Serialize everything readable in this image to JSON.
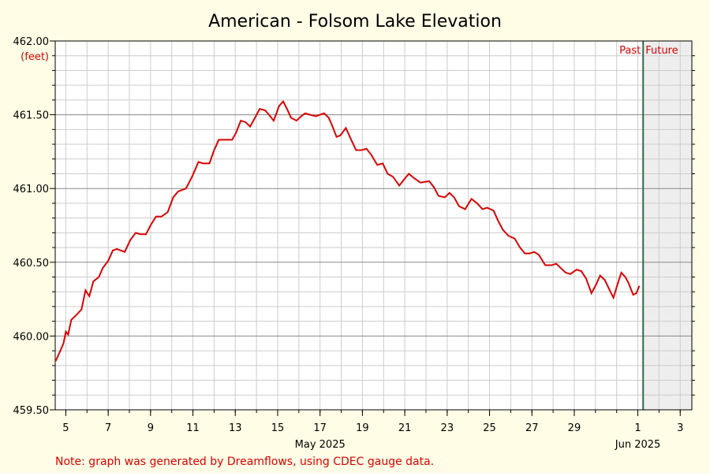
{
  "chart_data": {
    "type": "line",
    "title": "American - Folsom Lake Elevation",
    "y_unit_label": "(feet)",
    "note": "Note: graph was generated by Dreamflows, using CDEC gauge data.",
    "past_label": "Past",
    "future_label": "Future",
    "now_x": 32.25,
    "xlim": [
      4.5,
      34.55
    ],
    "ylim": [
      459.5,
      462.0
    ],
    "xticks": [
      5,
      7,
      9,
      11,
      13,
      15,
      17,
      19,
      21,
      23,
      25,
      27,
      29,
      {
        "value": 32,
        "label": "1"
      },
      {
        "value": 34,
        "label": "3"
      }
    ],
    "x_period_labels": [
      {
        "value": 17,
        "label": "May 2025"
      },
      {
        "value": 32,
        "label": "Jun 2025"
      }
    ],
    "yticks": [
      {
        "value": 459.5,
        "label": "459.50"
      },
      {
        "value": 460.0,
        "label": "460.00"
      },
      {
        "value": 460.5,
        "label": "460.50"
      },
      {
        "value": 461.0,
        "label": "461.00"
      },
      {
        "value": 461.5,
        "label": "461.50"
      },
      {
        "value": 462.0,
        "label": "462.00"
      }
    ],
    "xminor_ticks": [
      5,
      6,
      7,
      8,
      9,
      10,
      11,
      12,
      13,
      14,
      15,
      16,
      17,
      18,
      19,
      20,
      21,
      22,
      23,
      24,
      25,
      26,
      27,
      28,
      29,
      30,
      31,
      32,
      33,
      34
    ],
    "yminor_ticks": [
      459.6,
      459.7,
      459.8,
      459.9,
      460.1,
      460.2,
      460.3,
      460.4,
      460.6,
      460.7,
      460.8,
      460.9,
      461.1,
      461.2,
      461.3,
      461.4,
      461.6,
      461.7,
      461.8,
      461.9
    ],
    "grid": true,
    "background": "#fffde6",
    "future_color": "#eeeeee",
    "now_color": "#2e6b4a",
    "series": [
      {
        "color": "#dd0000",
        "x": [
          4.52,
          4.74,
          4.89,
          5.0,
          5.11,
          5.26,
          5.48,
          5.74,
          5.93,
          6.11,
          6.3,
          6.56,
          6.74,
          7.0,
          7.22,
          7.41,
          7.78,
          8.04,
          8.3,
          8.52,
          8.78,
          9.04,
          9.26,
          9.52,
          9.81,
          10.07,
          10.3,
          10.67,
          10.96,
          11.26,
          11.48,
          11.78,
          12.0,
          12.22,
          12.85,
          13.04,
          13.26,
          13.48,
          13.7,
          13.93,
          14.15,
          14.41,
          14.59,
          14.81,
          15.07,
          15.26,
          15.44,
          15.63,
          15.89,
          16.11,
          16.3,
          16.52,
          16.81,
          17.0,
          17.19,
          17.41,
          17.59,
          17.78,
          17.96,
          18.22,
          18.44,
          18.7,
          18.96,
          19.19,
          19.41,
          19.7,
          19.96,
          20.19,
          20.44,
          20.74,
          20.96,
          21.19,
          21.44,
          21.74,
          22.15,
          22.37,
          22.59,
          22.89,
          23.11,
          23.33,
          23.56,
          23.85,
          24.15,
          24.41,
          24.67,
          24.89,
          25.19,
          25.41,
          25.63,
          25.89,
          26.19,
          26.44,
          26.67,
          26.89,
          27.11,
          27.33,
          27.63,
          27.93,
          28.15,
          28.37,
          28.59,
          28.81,
          29.11,
          29.33,
          29.56,
          29.81,
          30.0,
          30.22,
          30.44,
          30.74,
          30.85,
          31.04,
          31.22,
          31.41,
          31.56,
          31.78,
          31.93,
          32.07
        ],
        "values": [
          459.83,
          459.9,
          459.95,
          460.03,
          460.01,
          460.11,
          460.14,
          460.18,
          460.31,
          460.27,
          460.37,
          460.4,
          460.46,
          460.51,
          460.58,
          460.59,
          460.57,
          460.65,
          460.7,
          460.69,
          460.69,
          460.76,
          460.81,
          460.81,
          460.84,
          460.94,
          460.98,
          461.0,
          461.08,
          461.18,
          461.17,
          461.17,
          461.26,
          461.33,
          461.33,
          461.38,
          461.46,
          461.45,
          461.42,
          461.48,
          461.54,
          461.53,
          461.5,
          461.46,
          461.56,
          461.59,
          461.54,
          461.48,
          461.46,
          461.49,
          461.51,
          461.5,
          461.49,
          461.5,
          461.51,
          461.48,
          461.42,
          461.35,
          461.36,
          461.41,
          461.34,
          461.26,
          461.26,
          461.27,
          461.23,
          461.16,
          461.17,
          461.1,
          461.08,
          461.02,
          461.06,
          461.1,
          461.07,
          461.04,
          461.05,
          461.01,
          460.95,
          460.94,
          460.97,
          460.94,
          460.88,
          460.86,
          460.93,
          460.9,
          460.86,
          460.87,
          460.85,
          460.78,
          460.72,
          460.68,
          460.66,
          460.6,
          460.56,
          460.56,
          460.57,
          460.55,
          460.48,
          460.48,
          460.49,
          460.46,
          460.43,
          460.42,
          460.45,
          460.44,
          460.39,
          460.29,
          460.34,
          460.41,
          460.38,
          460.29,
          460.26,
          460.35,
          460.43,
          460.4,
          460.36,
          460.28,
          460.29,
          460.34
        ]
      }
    ]
  }
}
